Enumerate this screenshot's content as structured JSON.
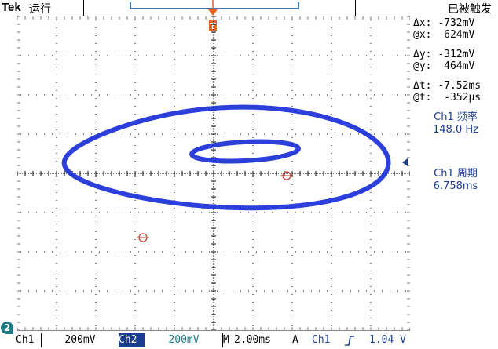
{
  "header": {
    "brand": "Tek",
    "mode": "运行",
    "trigger_status": "已被触发",
    "trigger_marker": "T"
  },
  "cursor_readout": {
    "dx_label": "Δx:",
    "dx_value": "-732mV",
    "ax_label": "@x:",
    "ax_value": "624mV",
    "dy_label": "Δy:",
    "dy_value": "-312mV",
    "ay_label": "@y:",
    "ay_value": "464mV",
    "dt_label": "Δt:",
    "dt_value": "-7.52ms",
    "at_label": "@t:",
    "at_value": "-352µs"
  },
  "measurements": {
    "freq_label": "Ch1 频率",
    "freq_value": "148.0 Hz",
    "period_label": "Ch1 周期",
    "period_value": "6.758ms"
  },
  "status_bar": {
    "ch1_label": "Ch1",
    "ch1_scale": "200mV",
    "ch2_label": "Ch2",
    "ch2_scale": "200mV",
    "timebase_label": "M",
    "timebase_value": "2.00ms",
    "acq_mode": "A",
    "trig_source": "Ch1",
    "trig_slope": "rising-edge-icon",
    "trig_level": "1.04 V",
    "ch2_marker": "2"
  },
  "colors": {
    "trace": "#1a2fd8",
    "grid": "#000000",
    "accent": "#1b3d8f",
    "trigger_marker": "#e8601c"
  }
}
